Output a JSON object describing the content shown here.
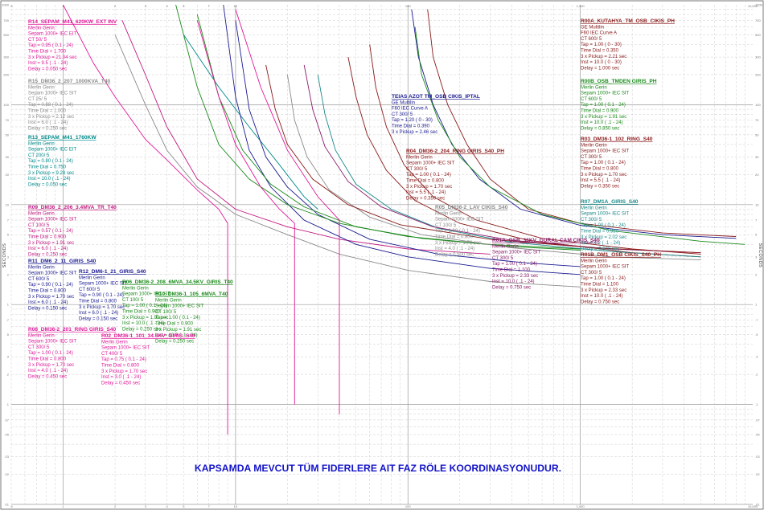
{
  "chart_data": {
    "type": "line",
    "title": "KAPSAMDA MEVCUT TÜM FIDERLERE AIT FAZ RÖLE KOORDINASYONUDUR.",
    "xlabel": "",
    "ylabel": "SECONDS",
    "x_scale": "log",
    "y_scale": "log",
    "xlim": [
      0.5,
      10000
    ],
    "ylim": [
      0.01,
      1000
    ],
    "grid": true,
    "y_tick_labels": [
      "1000",
      "700",
      "500",
      "300",
      "200",
      "100",
      "70",
      "50",
      "30",
      "20",
      "10",
      "7",
      "5",
      "3",
      "2",
      "1",
      ".7",
      ".5",
      ".3",
      ".2",
      ".1",
      ".07",
      ".05",
      ".03",
      ".02",
      ".01"
    ],
    "x_tick_labels": [
      ".5",
      "1",
      "2",
      "3",
      "4",
      "5",
      "7",
      "10",
      "100",
      "1,000",
      "10,000"
    ],
    "series": [
      {
        "name": "R14_SEPAM_M41_620KW_EXT INV",
        "color": "#e0189a",
        "lines": [
          "Merlin Gerin",
          "Sepam 1000+  IEC EIT",
          "CT   50/ 5",
          "Tap = 0.95 ( 0.1 - 24)",
          "Time Dial = 1.700",
          "3 x Pickup = 21.04 sec",
          "Inst =   9.5 ( .1 - 24)",
          "Delay = 0.050 sec"
        ],
        "curve": [
          [
            1.0,
            1000
          ],
          [
            1.5,
            260
          ],
          [
            2,
            120
          ],
          [
            3,
            45
          ],
          [
            4,
            28
          ],
          [
            6,
            14
          ],
          [
            8,
            9
          ],
          [
            9.0,
            6.5
          ],
          [
            9.0,
            0.05
          ]
        ]
      },
      {
        "name": "R15_DM36_2_207_1000KVA_T40",
        "color": "#8a8a8a",
        "lines": [
          "Merlin Gerin",
          "Sepam 1000+  IEC SIT",
          "CT   25/ 5",
          "Tap = 0.88 ( 0.1 - 24)",
          "Time Dial = 1.000",
          "3 x Pickup = 2.12 sec",
          "Inst =   6.0 ( .1 - 24)",
          "Delay = 0.250 sec"
        ],
        "curve": [
          [
            2.0,
            500
          ],
          [
            3,
            100
          ],
          [
            4,
            35
          ],
          [
            6,
            15
          ],
          [
            10,
            8
          ],
          [
            20,
            5
          ],
          [
            40,
            3.2
          ],
          [
            100,
            2.2
          ],
          [
            300,
            1.7
          ],
          [
            1000,
            1.5
          ]
        ]
      },
      {
        "name": "R13_SEPAM_M41_1760KW",
        "color": "#008a8a",
        "lines": [
          "Merlin Gerin",
          "Sepam 1000+  IEC EIT",
          "CT   200/ 5",
          "Tap = 0.80 ( 0.1 - 24)",
          "Time Dial = 0.750",
          "3 x Pickup = 9.28 sec",
          "Inst =  10.0 ( .1 - 24)",
          "Delay = 0.050 sec"
        ],
        "curve": [
          [
            5,
            500
          ],
          [
            8,
            150
          ],
          [
            12,
            60
          ],
          [
            18,
            25
          ],
          [
            25,
            12
          ],
          [
            30,
            9
          ]
        ]
      },
      {
        "name": "R09_DM36_2_206_3.4MVA_TR_T40",
        "color": "#c21880",
        "lines": [
          "Merlin Gerin",
          "Sepam 1000+  IEC SIT",
          "CT   100/ 5",
          "Tap = 0.57 ( 0.1 - 24)",
          "Time Dial = 0.900",
          "3 x Pickup = 1.91 sec",
          "Inst =   6.0 ( .1 - 24)",
          "Delay = 0.250 sec"
        ],
        "curve": [
          [
            2.2,
            700
          ],
          [
            3,
            200
          ],
          [
            4,
            60
          ],
          [
            6,
            18
          ],
          [
            10,
            9
          ],
          [
            20,
            6
          ],
          [
            40,
            4.5
          ],
          [
            100,
            3.6
          ],
          [
            300,
            3.2
          ]
        ]
      },
      {
        "name": "R11_DM6_2_11_GIRIS_S40",
        "color": "#1a1a90",
        "lines": [
          "Merlin Gerin",
          "Sepam 1000+  IEC SIT",
          "CT   600/ 5",
          "Tap = 0.90 ( 0.1 - 24)",
          "Time Dial = 0.800",
          "3 x Pickup = 1.70 sec",
          "Inst =   6.0 ( .1 - 24)",
          "Delay = 0.150 sec"
        ],
        "curve": [
          [
            8.5,
            1000
          ],
          [
            10,
            120
          ],
          [
            12,
            35
          ],
          [
            16,
            15
          ],
          [
            25,
            7
          ],
          [
            50,
            4
          ],
          [
            100,
            3
          ],
          [
            300,
            2.3
          ],
          [
            1000,
            2.0
          ]
        ]
      },
      {
        "name": "R12_DM6-1_21_GIRIS_S40",
        "color": "#1a1a90",
        "lines": [
          "Merlin Gerin",
          "Sepam 1000+  IEC SIT",
          "CT   600/ 5",
          "Tap = 0.90 ( 0.1 - 24)",
          "Time Dial = 0.800",
          "3 x Pickup = 1.70 sec",
          "Inst =   6.0 ( .1 - 24)",
          "Delay = 0.150 sec"
        ],
        "curve": [
          [
            10,
            700
          ],
          [
            12,
            90
          ],
          [
            15,
            30
          ],
          [
            20,
            15
          ],
          [
            30,
            8
          ],
          [
            60,
            4.5
          ],
          [
            150,
            3.2
          ],
          [
            500,
            2.6
          ],
          [
            1000,
            2.4
          ]
        ]
      },
      {
        "name": "R06_DM36-2_208_6MVA_34.5KV_GIRIS_T40",
        "color": "#1a8a1a",
        "lines": [
          "Merlin Gerin",
          "Sepam 1000+  IEC SIT",
          "CT   100/ 5",
          "Tap = 1.00 ( 0.1 - 24)",
          "Time Dial = 0.900",
          "3 x Pickup = 1.91 sec",
          "Inst =  10.0 ( .1 - 24)",
          "Delay = 0.250 sec"
        ],
        "curve": [
          [
            4.5,
            1000
          ],
          [
            6,
            150
          ],
          [
            8,
            40
          ],
          [
            12,
            18
          ],
          [
            20,
            10
          ],
          [
            40,
            6.5
          ],
          [
            100,
            4.8
          ],
          [
            300,
            4
          ],
          [
            1000,
            3.6
          ]
        ]
      },
      {
        "name": "R10_DM36-1_105_6MVA_T40",
        "color": "#1a8a1a",
        "lines": [
          "Merlin Gerin",
          "Sepam 1000+  IEC SIT",
          "CT   100/ 5",
          "Tap = 1.00 ( 0.1 - 24)",
          "Time Dial = 0.900",
          "3 x Pickup = 1.91 sec",
          "Inst =  10.0 ( .1 - 24)",
          "Delay = 0.250 sec"
        ],
        "curve": [
          [
            6,
            800
          ],
          [
            8,
            120
          ],
          [
            11,
            35
          ],
          [
            16,
            16
          ],
          [
            25,
            9.5
          ],
          [
            50,
            6
          ],
          [
            120,
            4.6
          ],
          [
            400,
            3.8
          ],
          [
            1000,
            3.5
          ]
        ]
      },
      {
        "name": "R08_DM36-2_201_RING GIRIS_S40",
        "color": "#e0189a",
        "lines": [
          "Merlin Gerin",
          "Sepam 1000+  IEC SIT",
          "CT   300/ 5",
          "Tap = 1.00 ( 0.1 - 24)",
          "Time Dial = 0.800",
          "3 x Pickup = 1.70 sec",
          "Inst =   4.0 ( .1 - 24)",
          "Delay = 0.450 sec"
        ],
        "curve": [
          [
            10,
            900
          ],
          [
            14,
            150
          ],
          [
            20,
            35
          ],
          [
            30,
            12
          ],
          [
            40,
            7
          ],
          [
            40,
            0.08
          ]
        ]
      },
      {
        "name": "R02_DM36-1_101_34.5KV_GIRIS_S40",
        "color": "#e0189a",
        "lines": [
          "Merlin Gerin",
          "Sepam 1000+  IEC SIT",
          "CT   400/ 5",
          "Tap = 0.75 ( 0.1 - 24)",
          "Time Dial = 0.800",
          "3 x Pickup = 1.70 sec",
          "Inst =   3.0 ( .1 - 24)",
          "Delay = 0.450 sec"
        ],
        "curve": [
          [
            6,
            700
          ],
          [
            8,
            120
          ],
          [
            10,
            40
          ],
          [
            14,
            15
          ],
          [
            18,
            9
          ],
          [
            22,
            6.5
          ],
          [
            22,
            0.1
          ]
        ]
      },
      {
        "name": "R00A_KUTAHYA_TM_OSB_CIKIS_PH",
        "color": "#8a1a1a",
        "lines": [
          "GE Multilin",
          "F60  IEC Curve A",
          "CT   600/ 5",
          "Tap = 1.00 ( 0 - 30)",
          "Time Dial = 0.350",
          "3 x Pickup = 2.21 sec",
          "Inst =  10.0 ( 0 - 30)",
          "Delay = 1.000 sec"
        ],
        "curve": [
          [
            130,
            900
          ],
          [
            140,
            300
          ],
          [
            170,
            100
          ],
          [
            220,
            40
          ],
          [
            300,
            18
          ],
          [
            500,
            9
          ],
          [
            1000,
            6.5
          ],
          [
            3000,
            5.2
          ],
          [
            8000,
            4.8
          ]
        ]
      },
      {
        "name": "TEIAS AZOT TM_OSB CIKIS_IPTAL",
        "color": "#1a1a90",
        "lines": [
          "GE Multilin",
          "F60  IEC Curve A",
          "CT   300/ 5",
          "Tap = 1.20 ( 0 - 30)",
          "Time Dial = 0.390",
          "3 x Pickup = 2.46 sec"
        ],
        "curve": [
          [
            105,
            900
          ],
          [
            115,
            300
          ],
          [
            140,
            100
          ],
          [
            180,
            40
          ],
          [
            260,
            18
          ],
          [
            450,
            9
          ],
          [
            1000,
            6.2
          ],
          [
            3000,
            5
          ],
          [
            8000,
            4.6
          ]
        ]
      },
      {
        "name": "R00B_OSB_TMDEN GIRIS_PH",
        "color": "#1a8a1a",
        "lines": [
          "Merlin Gerin",
          "Sepam 1000+  IEC SIT",
          "CT   600/ 5",
          "Tap = 1.00 ( 0.1 - 24)",
          "Time Dial = 0.900",
          "3 x Pickup = 1.91 sec",
          "Inst =  10.0 ( .1 - 24)",
          "Delay = 0.850 sec"
        ],
        "curve": [
          [
            110,
            600
          ],
          [
            120,
            200
          ],
          [
            150,
            70
          ],
          [
            200,
            30
          ],
          [
            300,
            15
          ],
          [
            600,
            8
          ],
          [
            1500,
            5.5
          ],
          [
            5000,
            4.3
          ],
          [
            9000,
            4
          ]
        ]
      },
      {
        "name": "R03_DM36-1_102_RING_S40",
        "color": "#8a1a1a",
        "lines": [
          "Merlin Gerin",
          "Sepam 1000+  IEC SIT",
          "CT   300/ 5",
          "Tap = 1.00 ( 0.1 - 24)",
          "Time Dial = 0.800",
          "3 x Pickup = 1.70 sec",
          "Inst =   5.5 ( .1 - 24)",
          "Delay = 0.350 sec"
        ],
        "curve": [
          [
            60,
            400
          ],
          [
            65,
            150
          ],
          [
            75,
            60
          ],
          [
            95,
            25
          ],
          [
            140,
            12
          ],
          [
            250,
            7
          ],
          [
            600,
            4.6
          ],
          [
            2000,
            3.6
          ],
          [
            5000,
            3.2
          ]
        ]
      },
      {
        "name": "R04_DM36-2_204_RING GIRIS_S40_PH",
        "color": "#8a1a1a",
        "lines": [
          "Merlin Gerin",
          "Sepam 1000+  IEC SIT",
          "CT   300/ 5",
          "Tap = 1.00 ( 0.1 - 24)",
          "Time Dial = 0.800",
          "3 x Pickup = 1.70 sec",
          "Inst =   5.5 ( .1 - 24)",
          "Delay = 0.350 sec"
        ],
        "curve": [
          [
            45,
            300
          ],
          [
            50,
            120
          ],
          [
            58,
            50
          ],
          [
            75,
            22
          ],
          [
            110,
            11
          ],
          [
            200,
            6.5
          ],
          [
            500,
            4.4
          ],
          [
            2000,
            3.3
          ],
          [
            5000,
            3
          ]
        ]
      },
      {
        "name": "R07_DM1A_GIRIS_S40",
        "color": "#1a8a8a",
        "lines": [
          "Merlin Gerin",
          "Sepam 1000+  IEC SIT",
          "CT   300/ 5",
          "Tap = 1.00 ( 0.1 - 24)",
          "Time Dial = 0.950",
          "3 x Pickup = 2.02 sec",
          "Inst =   4.2 ( .1 - 24)",
          "Delay = 0.600 sec"
        ],
        "curve": [
          [
            30,
            200
          ],
          [
            33,
            80
          ],
          [
            38,
            35
          ],
          [
            50,
            16
          ],
          [
            80,
            9
          ],
          [
            150,
            5.8
          ],
          [
            400,
            4.2
          ],
          [
            1500,
            3.4
          ],
          [
            5000,
            3
          ]
        ]
      },
      {
        "name": "R05_DM36-2_LAV CIKIS_S40",
        "color": "#8a8a8a",
        "lines": [
          "Merlin Gerin",
          "Sepam 1000+  IEC SIT",
          "CT   100/ 5",
          "Tap = 1.00 ( 0.1 - 24)",
          "Time Dial = 0.800",
          "3 x Pickup = 1.70 sec",
          "Inst =   4.0 ( .1 - 24)",
          "Delay = 0.500 sec"
        ],
        "curve": [
          [
            20,
            200
          ],
          [
            22,
            70
          ],
          [
            26,
            30
          ],
          [
            35,
            14
          ],
          [
            60,
            7.5
          ],
          [
            120,
            5
          ],
          [
            400,
            3.7
          ],
          [
            1500,
            3
          ],
          [
            5000,
            2.8
          ]
        ]
      },
      {
        "name": "R01A_OSB_36KV_GURAL CAM CIKIS_S40",
        "color": "#8a1a6a",
        "lines": [
          "Merlin Gerin",
          "Sepam 1000+  IEC SIT",
          "CT   300/ 5",
          "Tap = 1.00 ( 0.1 - 24)",
          "Time Dial = 1.100",
          "3 x Pickup = 2.33 sec",
          "Inst =  10.0 ( .1 - 24)",
          "Delay = 0.750 sec"
        ],
        "curve": [
          [
            25,
            250
          ],
          [
            28,
            90
          ],
          [
            33,
            38
          ],
          [
            45,
            17
          ],
          [
            70,
            9.5
          ],
          [
            140,
            6
          ],
          [
            400,
            4.4
          ],
          [
            1500,
            3.6
          ],
          [
            5000,
            3.3
          ]
        ]
      },
      {
        "name": "R01B_DM1_OSB CIKIS_S40_PH",
        "color": "#8a1a1a",
        "lines": [
          "Merlin Gerin",
          "Sepam 1000+  IEC SIT",
          "CT   300/ 5",
          "Tap = 1.00 ( 0.1 - 24)",
          "Time Dial = 1.100",
          "3 x Pickup = 2.33 sec",
          "Inst =  10.0 ( .1 - 24)",
          "Delay = 0.750 sec"
        ],
        "curve": [
          [
            15,
            250
          ],
          [
            17,
            90
          ],
          [
            20,
            40
          ],
          [
            28,
            18
          ],
          [
            45,
            10
          ],
          [
            90,
            6.3
          ],
          [
            300,
            4.5
          ],
          [
            1200,
            3.7
          ],
          [
            5000,
            3.3
          ]
        ]
      }
    ]
  }
}
